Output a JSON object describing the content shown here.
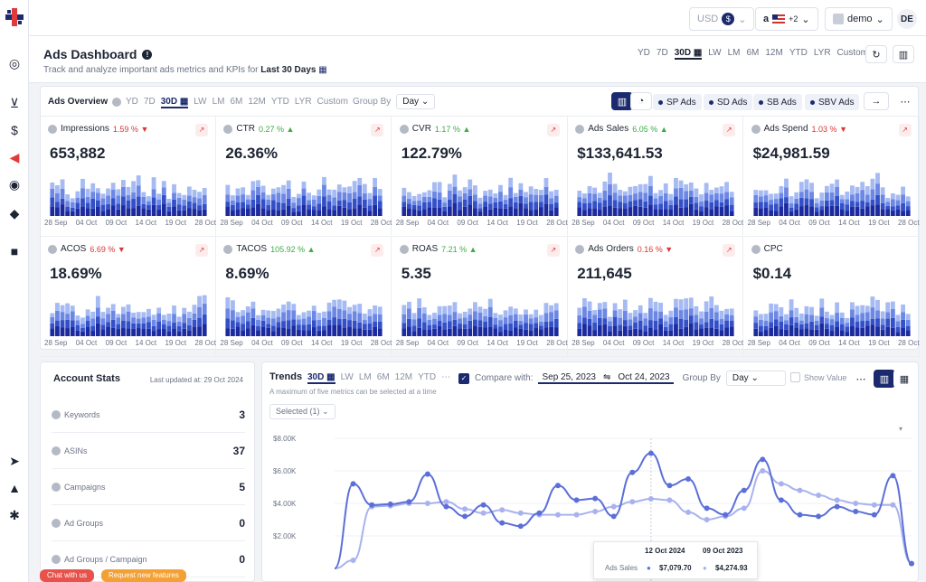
{
  "topbar": {
    "currency": "USD",
    "currency_symbol": "$",
    "marketplace_extra": "+2",
    "account": "demo",
    "user_initials": "DE"
  },
  "header": {
    "title": "Ads Dashboard",
    "subtitle_prefix": "Track and analyze important ads metrics and KPIs for",
    "subtitle_period": "Last 30 Days",
    "ranges": [
      "YD",
      "7D",
      "30D",
      "LW",
      "LM",
      "6M",
      "12M",
      "YTD",
      "LYR",
      "Custom"
    ],
    "active_range": "30D"
  },
  "overview": {
    "title": "Ads Overview",
    "ranges": [
      "YD",
      "7D",
      "30D",
      "LW",
      "LM",
      "6M",
      "12M",
      "YTD",
      "LYR",
      "Custom"
    ],
    "group_by_label": "Group By",
    "group_by_value": "Day",
    "ad_types": [
      "SP Ads",
      "SD Ads",
      "SB Ads",
      "SBV Ads"
    ],
    "x_ticks": [
      "28 Sep",
      "04 Oct",
      "09 Oct",
      "14 Oct",
      "19 Oct",
      "28 Oct"
    ],
    "cards": [
      {
        "label": "Impressions",
        "change": "1.59 %",
        "dir": "down",
        "value": "653,882"
      },
      {
        "label": "CTR",
        "change": "0.27 %",
        "dir": "up",
        "value": "26.36%"
      },
      {
        "label": "CVR",
        "change": "1.17 %",
        "dir": "up",
        "value": "122.79%"
      },
      {
        "label": "Ads Sales",
        "change": "6.05 %",
        "dir": "up",
        "value": "$133,641.53"
      },
      {
        "label": "Ads Spend",
        "change": "1.03 %",
        "dir": "down",
        "value": "$24,981.59"
      },
      {
        "label": "ACOS",
        "change": "6.69 %",
        "dir": "down",
        "value": "18.69%"
      },
      {
        "label": "TACOS",
        "change": "105.92 %",
        "dir": "up",
        "value": "8.69%"
      },
      {
        "label": "ROAS",
        "change": "7.21 %",
        "dir": "up",
        "value": "5.35"
      },
      {
        "label": "Ads Orders",
        "change": "0.16 %",
        "dir": "down",
        "value": "211,645"
      },
      {
        "label": "CPC",
        "change": "",
        "dir": "",
        "value": "$0.14"
      }
    ]
  },
  "account_stats": {
    "title": "Account Stats",
    "updated": "Last updated at: 29 Oct 2024",
    "rows": [
      {
        "label": "Keywords",
        "value": "3"
      },
      {
        "label": "ASINs",
        "value": "37"
      },
      {
        "label": "Campaigns",
        "value": "5"
      },
      {
        "label": "Ad Groups",
        "value": "0"
      },
      {
        "label": "Ad Groups / Campaign",
        "value": "0"
      }
    ]
  },
  "support": {
    "chat": "Chat with us",
    "request": "Request new features"
  },
  "trends": {
    "title": "Trends",
    "ranges": [
      "30D",
      "LW",
      "LM",
      "6M",
      "12M",
      "YTD"
    ],
    "note": "A maximum of five metrics can be selected at a time",
    "compare_label": "Compare with:",
    "date_from": "Sep 25, 2023",
    "date_to": "Oct 24, 2023",
    "group_by_label": "Group By",
    "group_by_value": "Day",
    "show_value": "Show Value",
    "selected": "Selected (1)",
    "tooltip": {
      "date1": "12 Oct 2024",
      "date2": "09 Oct 2023",
      "metric": "Ads Sales",
      "val1": "$7,079.70",
      "val2": "$4,274.93"
    }
  },
  "chart_data": {
    "type": "line",
    "ylabel": "",
    "y_ticks": [
      "$8.00K",
      "$6.00K",
      "$4.00K",
      "$2.00K"
    ],
    "ylim": [
      0,
      8000
    ],
    "series": [
      {
        "values": [
          0,
          5200,
          3900,
          3950,
          4100,
          5800,
          3800,
          3200,
          3900,
          2800,
          2600,
          3400,
          5100,
          4200,
          4300,
          3200,
          5900,
          7080,
          5100,
          5500,
          3700,
          3300,
          4800,
          6700,
          4200,
          3300,
          3200,
          3800,
          3500,
          3300,
          5700,
          300
        ]
      },
      {
        "values": [
          0,
          500,
          3800,
          3850,
          4000,
          4000,
          4100,
          3650,
          3400,
          3600,
          3400,
          3300,
          3300,
          3300,
          3500,
          3800,
          4100,
          4275,
          4200,
          3450,
          3000,
          3200,
          3700,
          6000,
          5200,
          4800,
          4500,
          4200,
          4000,
          3900,
          3900,
          300
        ]
      }
    ],
    "colors": [
      "#5c6fd8",
      "#a9b2ee"
    ]
  }
}
